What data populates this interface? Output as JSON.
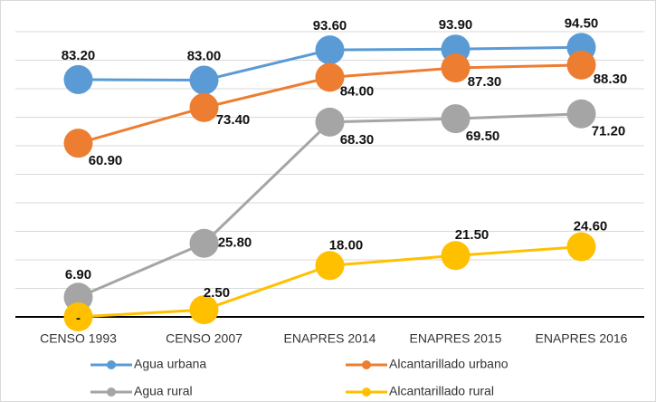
{
  "chart_data": {
    "type": "line",
    "categories": [
      "CENSO 1993",
      "CENSO 2007",
      "ENAPRES  2014",
      "ENAPRES 2015",
      "ENAPRES 2016"
    ],
    "ylim": [
      0,
      100
    ],
    "yticks": [
      0,
      10,
      20,
      30,
      40,
      50,
      60,
      70,
      80,
      90,
      100
    ],
    "grid": true,
    "series": [
      {
        "name": "Agua urbana",
        "color": "#5b9bd5",
        "values": [
          83.2,
          83.0,
          93.6,
          93.9,
          94.5
        ],
        "value_labels": [
          "83.20",
          "83.00",
          "93.60",
          "93.90",
          "94.50"
        ]
      },
      {
        "name": "Alcantarillado urbano",
        "color": "#ed7d31",
        "values": [
          60.9,
          73.4,
          84.0,
          87.3,
          88.3
        ],
        "value_labels": [
          "60.90",
          "73.40",
          "84.00",
          "87.30",
          "88.30"
        ]
      },
      {
        "name": "Agua rural",
        "color": "#a5a5a5",
        "values": [
          6.9,
          25.8,
          68.3,
          69.5,
          71.2
        ],
        "value_labels": [
          "6.90",
          "25.80",
          "68.30",
          "69.50",
          "71.20"
        ]
      },
      {
        "name": "Alcantarillado rural",
        "color": "#ffc000",
        "values": [
          0,
          2.5,
          18.0,
          21.5,
          24.6
        ],
        "value_labels": [
          "-",
          "2.50",
          "18.00",
          "21.50",
          "24.60"
        ]
      }
    ]
  }
}
